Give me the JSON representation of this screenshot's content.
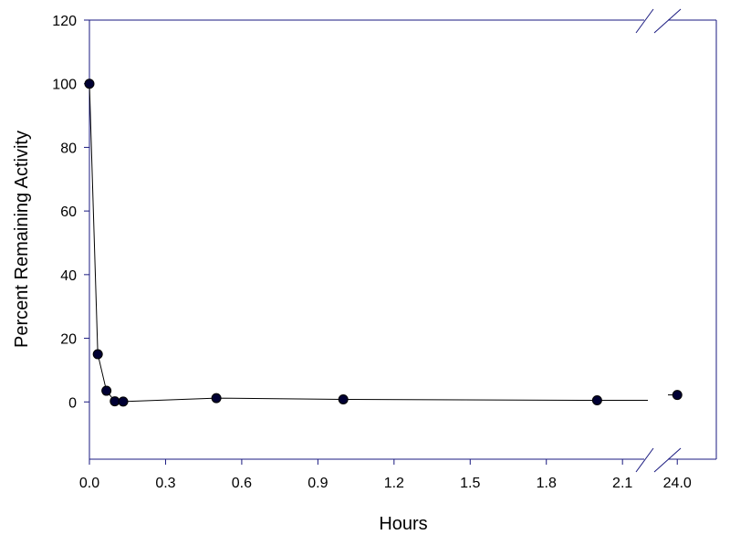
{
  "chart_data": {
    "type": "line",
    "title": "",
    "xlabel": "Hours",
    "ylabel": "Percent Remaining Activity",
    "x_scale": "broken",
    "x_segments": [
      {
        "range": [
          0.0,
          2.2
        ],
        "ticks": [
          0.0,
          0.3,
          0.6,
          0.9,
          1.2,
          1.5,
          1.8,
          2.1
        ],
        "tick_labels": [
          "0.0",
          "0.3",
          "0.6",
          "0.9",
          "1.2",
          "1.5",
          "1.8",
          "2.1"
        ]
      },
      {
        "range": [
          23.8,
          24.7
        ],
        "ticks": [
          24.0
        ],
        "tick_labels": [
          "24.0"
        ]
      }
    ],
    "ylim": [
      -18,
      120
    ],
    "y_ticks": [
      0,
      20,
      40,
      60,
      80,
      100,
      120
    ],
    "y_tick_labels": [
      "0",
      "20",
      "40",
      "60",
      "80",
      "100",
      "120"
    ],
    "grid": false,
    "legend": "none",
    "colors": {
      "frame": "#1a1a80",
      "marker": "#000033",
      "line": "#000000"
    },
    "series": [
      {
        "name": "",
        "x": [
          0.0,
          0.033,
          0.067,
          0.1,
          0.133,
          0.5,
          1.0,
          2.0,
          24.0
        ],
        "y": [
          100,
          15,
          3.5,
          0.2,
          0.1,
          1.2,
          0.8,
          0.5,
          2.2
        ]
      }
    ]
  }
}
